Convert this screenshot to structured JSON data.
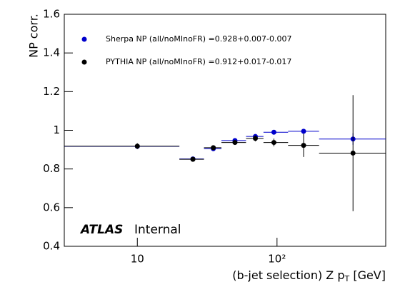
{
  "chart_data": {
    "type": "scatter",
    "ylabel": "NP corr.",
    "xlabel": [
      "(b-jet selection) Z p",
      "T",
      " [GeV]"
    ],
    "annotations": [
      "ATLAS",
      "Internal"
    ],
    "x": [
      10,
      25,
      35,
      50,
      70,
      95,
      155,
      350
    ],
    "bins": [
      3,
      20,
      30,
      40,
      60,
      80,
      120,
      200,
      600
    ],
    "series": [
      {
        "name": "Sherpa NP (all/noMInoFR) =0.928+0.007-0.007",
        "color": "#0000cc",
        "values": [
          0.917,
          0.852,
          0.905,
          0.947,
          0.968,
          0.99,
          0.995,
          0.955
        ],
        "errors": [
          0.005,
          0.005,
          0.005,
          0.005,
          0.006,
          0.008,
          0.01,
          0.03
        ]
      },
      {
        "name": "PYTHIA NP (all/noMInoFR) =0.912+0.017-0.017",
        "color": "#000000",
        "values": [
          0.918,
          0.85,
          0.91,
          0.937,
          0.958,
          0.937,
          0.922,
          0.882
        ],
        "errors": [
          0.015,
          0.01,
          0.012,
          0.01,
          0.015,
          0.02,
          0.06,
          0.3
        ]
      }
    ],
    "xlim": [
      3,
      600
    ],
    "xlog": true,
    "xticks": [
      10,
      {
        "value": 100,
        "label": "10²"
      }
    ],
    "ylim": [
      0.4,
      1.6
    ],
    "yticks": [
      0.4,
      0.6,
      0.8,
      1,
      1.2,
      1.4,
      1.6
    ]
  }
}
